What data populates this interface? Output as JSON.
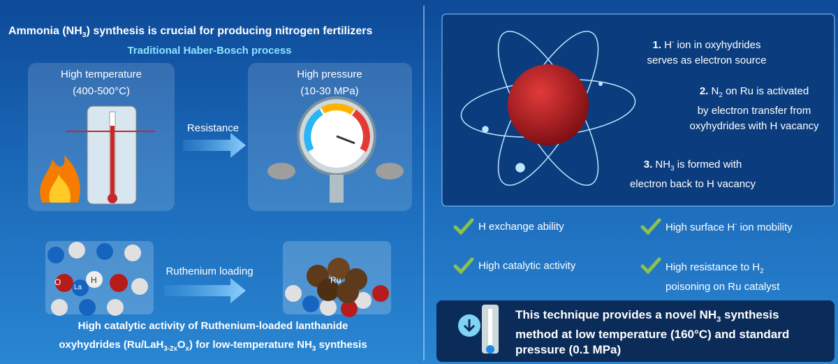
{
  "header": {
    "title": [
      "Ammonia (NH",
      "3",
      ") synthesis is crucial for producing nitrogen fertilizers"
    ],
    "subtitle": "Traditional Haber-Bosch process"
  },
  "haber": {
    "temp_label": "High temperature",
    "temp_value": "(400-500°C)",
    "pressure_label": "High pressure",
    "pressure_value": "(10-30 MPa)",
    "arrow": "Resistance"
  },
  "catalyst": {
    "atoms": [
      "O",
      "La",
      "H"
    ],
    "arrow": "Ruthenium loading",
    "ru": "Ru",
    "caption_line1": "High catalytic activity of Ruthenium-loaded lanthanide",
    "caption_line2": [
      "oxyhydrides (Ru/LaH",
      "3-2x",
      "O",
      "x",
      ") for low-temperature NH",
      "3",
      " synthesis"
    ]
  },
  "mechanism": {
    "steps": [
      {
        "number": "1.",
        "line1": [
          " H",
          "-",
          " ion in oxyhydrides"
        ],
        "line2": "serves as electron source"
      },
      {
        "number": "2.",
        "line1": [
          " N",
          "2",
          " on Ru is activated"
        ],
        "line2": "by electron transfer from",
        "line3": "oxyhydrides with H vacancy"
      },
      {
        "number": "3.",
        "line1": [
          " NH",
          "3",
          " is formed with"
        ],
        "line2": "electron back to H vacancy"
      }
    ]
  },
  "features": [
    {
      "line1": [
        "H exchange ability"
      ]
    },
    {
      "line1": [
        "High surface H",
        "-",
        " ion mobility"
      ]
    },
    {
      "line1": [
        "High catalytic activity"
      ]
    },
    {
      "line1": [
        "High resistance to H",
        "2"
      ],
      "line2": "poisoning on Ru catalyst"
    }
  ],
  "conclusion": {
    "line1": [
      "This technique provides a novel NH",
      "3",
      " synthesis"
    ],
    "line2": "method at low temperature  (160°C) and standard",
    "line3": "pressure (0.1 MPa)"
  }
}
